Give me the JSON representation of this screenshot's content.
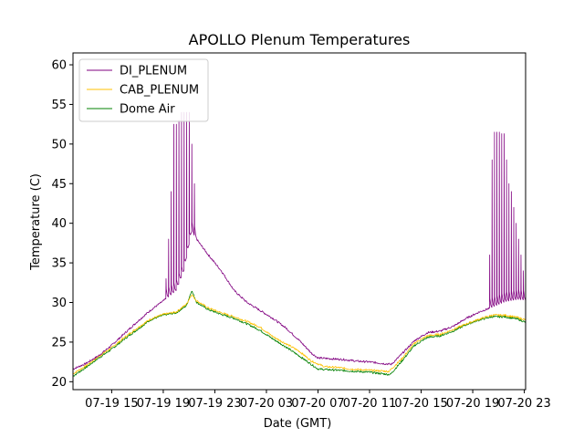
{
  "chart_data": {
    "type": "line",
    "title": "APOLLO Plenum Temperatures",
    "xlabel": "Date (GMT)",
    "ylabel": "Temperature (C)",
    "xlim_hours": [
      12.0,
      47.1
    ],
    "ylim": [
      19,
      61.5
    ],
    "x_ticks": [
      {
        "hour": 15,
        "label": "07-19 15"
      },
      {
        "hour": 19,
        "label": "07-19 19"
      },
      {
        "hour": 23,
        "label": "07-19 23"
      },
      {
        "hour": 27,
        "label": "07-20 03"
      },
      {
        "hour": 31,
        "label": "07-20 07"
      },
      {
        "hour": 35,
        "label": "07-20 11"
      },
      {
        "hour": 39,
        "label": "07-20 15"
      },
      {
        "hour": 43,
        "label": "07-20 19"
      },
      {
        "hour": 47,
        "label": "07-20 23"
      }
    ],
    "y_ticks": [
      20,
      25,
      30,
      35,
      40,
      45,
      50,
      55,
      60
    ],
    "grid": false,
    "legend": "top-left",
    "series": [
      {
        "name": "DI_PLENUM",
        "color": "#800080",
        "base": [
          [
            12,
            21.6
          ],
          [
            13,
            22.3
          ],
          [
            14,
            23.3
          ],
          [
            15,
            24.6
          ],
          [
            16,
            26.1
          ],
          [
            17,
            27.6
          ],
          [
            18,
            29.0
          ],
          [
            19,
            30.2
          ],
          [
            20,
            31.5
          ],
          [
            20.6,
            34.0
          ],
          [
            21.2,
            39.0
          ],
          [
            21.8,
            37.5
          ],
          [
            22.5,
            36.0
          ],
          [
            23.5,
            34.0
          ],
          [
            24.5,
            31.5
          ],
          [
            25.5,
            30.0
          ],
          [
            26.5,
            29.0
          ],
          [
            27.5,
            28.0
          ],
          [
            28.5,
            26.8
          ],
          [
            29.5,
            25.3
          ],
          [
            30.5,
            23.6
          ],
          [
            31,
            23.0
          ],
          [
            32,
            22.9
          ],
          [
            33,
            22.8
          ],
          [
            34,
            22.6
          ],
          [
            35,
            22.5
          ],
          [
            36,
            22.3
          ],
          [
            36.7,
            22.2
          ],
          [
            37.5,
            23.5
          ],
          [
            38.5,
            25.2
          ],
          [
            39.5,
            26.2
          ],
          [
            40.5,
            26.4
          ],
          [
            41.5,
            27.0
          ],
          [
            42.5,
            28.0
          ],
          [
            43.5,
            28.8
          ],
          [
            44.5,
            29.4
          ],
          [
            45.5,
            30.1
          ],
          [
            46.5,
            30.4
          ],
          [
            47.1,
            30.3
          ]
        ],
        "spikes": [
          {
            "from": 19.2,
            "to": 21.6,
            "n": 12,
            "peaks": [
              33,
              38,
              44,
              52.5,
              52.5,
              53,
              54,
              54,
              54,
              54,
              50,
              45
            ]
          },
          {
            "from": 44.3,
            "to": 47.1,
            "n": 15,
            "peaks": [
              36,
              48,
              51.5,
              51.5,
              51.5,
              51.3,
              51.3,
              48,
              45,
              44,
              42,
              40,
              38,
              36,
              34
            ]
          }
        ]
      },
      {
        "name": "CAB_PLENUM",
        "color": "#ffc000",
        "base": [
          [
            12,
            21.0
          ],
          [
            13,
            22.0
          ],
          [
            14,
            23.2
          ],
          [
            15,
            24.3
          ],
          [
            16,
            25.6
          ],
          [
            17,
            26.8
          ],
          [
            18,
            27.9
          ],
          [
            19,
            28.5
          ],
          [
            20,
            28.8
          ],
          [
            20.8,
            29.8
          ],
          [
            21.2,
            31.0
          ],
          [
            21.6,
            30.2
          ],
          [
            22.5,
            29.3
          ],
          [
            23.5,
            28.7
          ],
          [
            24.5,
            28.2
          ],
          [
            25.5,
            27.6
          ],
          [
            26.5,
            26.9
          ],
          [
            27.5,
            25.7
          ],
          [
            28.5,
            24.8
          ],
          [
            29.5,
            23.9
          ],
          [
            30.5,
            22.6
          ],
          [
            31.5,
            21.9
          ],
          [
            32.5,
            21.8
          ],
          [
            33.5,
            21.6
          ],
          [
            34.5,
            21.5
          ],
          [
            35.5,
            21.4
          ],
          [
            36.5,
            21.3
          ],
          [
            37.5,
            22.9
          ],
          [
            38.5,
            24.9
          ],
          [
            39.5,
            25.8
          ],
          [
            40.5,
            26.0
          ],
          [
            41.5,
            26.6
          ],
          [
            42.5,
            27.3
          ],
          [
            43.5,
            27.9
          ],
          [
            44.5,
            28.4
          ],
          [
            45.5,
            28.4
          ],
          [
            46.5,
            28.1
          ],
          [
            47.1,
            27.8
          ]
        ],
        "spikes": []
      },
      {
        "name": "Dome Air",
        "color": "#008000",
        "base": [
          [
            12,
            20.7
          ],
          [
            13,
            21.8
          ],
          [
            14,
            23.0
          ],
          [
            15,
            24.1
          ],
          [
            16,
            25.4
          ],
          [
            17,
            26.6
          ],
          [
            18,
            27.8
          ],
          [
            19,
            28.4
          ],
          [
            20,
            28.7
          ],
          [
            20.8,
            29.6
          ],
          [
            21.2,
            31.5
          ],
          [
            21.6,
            30.0
          ],
          [
            22.5,
            29.1
          ],
          [
            23.5,
            28.5
          ],
          [
            24.5,
            28.0
          ],
          [
            25.5,
            27.3
          ],
          [
            26.5,
            26.5
          ],
          [
            27.5,
            25.4
          ],
          [
            28.5,
            24.4
          ],
          [
            29.5,
            23.3
          ],
          [
            30.3,
            22.4
          ],
          [
            31,
            21.6
          ],
          [
            32,
            21.5
          ],
          [
            33,
            21.4
          ],
          [
            34,
            21.3
          ],
          [
            35,
            21.2
          ],
          [
            36,
            21.0
          ],
          [
            36.6,
            20.9
          ],
          [
            37.5,
            22.6
          ],
          [
            38.5,
            24.6
          ],
          [
            39.5,
            25.6
          ],
          [
            40.5,
            25.8
          ],
          [
            41.5,
            26.4
          ],
          [
            42.5,
            27.2
          ],
          [
            43.5,
            27.8
          ],
          [
            44.5,
            28.2
          ],
          [
            45.5,
            28.2
          ],
          [
            46.5,
            27.9
          ],
          [
            47.1,
            27.5
          ]
        ],
        "spikes": []
      }
    ]
  }
}
